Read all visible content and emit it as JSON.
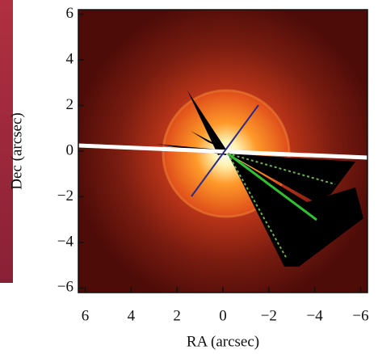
{
  "chart_data": {
    "type": "image",
    "xlabel": "RA (arcsec)",
    "ylabel": "Dec (arcsec)",
    "xlim": [
      6.3,
      -6.3
    ],
    "ylim": [
      -6.2,
      6.2
    ],
    "xticks": [
      6,
      4,
      2,
      0,
      {
        "value": -2,
        "label": "−2"
      },
      {
        "value": -4,
        "label": "−4"
      },
      {
        "value": -6,
        "label": "−6"
      }
    ],
    "yticks": [
      {
        "value": -6,
        "label": "−6"
      },
      {
        "value": -4,
        "label": "−4"
      },
      {
        "value": -2,
        "label": "−2"
      },
      0,
      2,
      4,
      6
    ]
  }
}
